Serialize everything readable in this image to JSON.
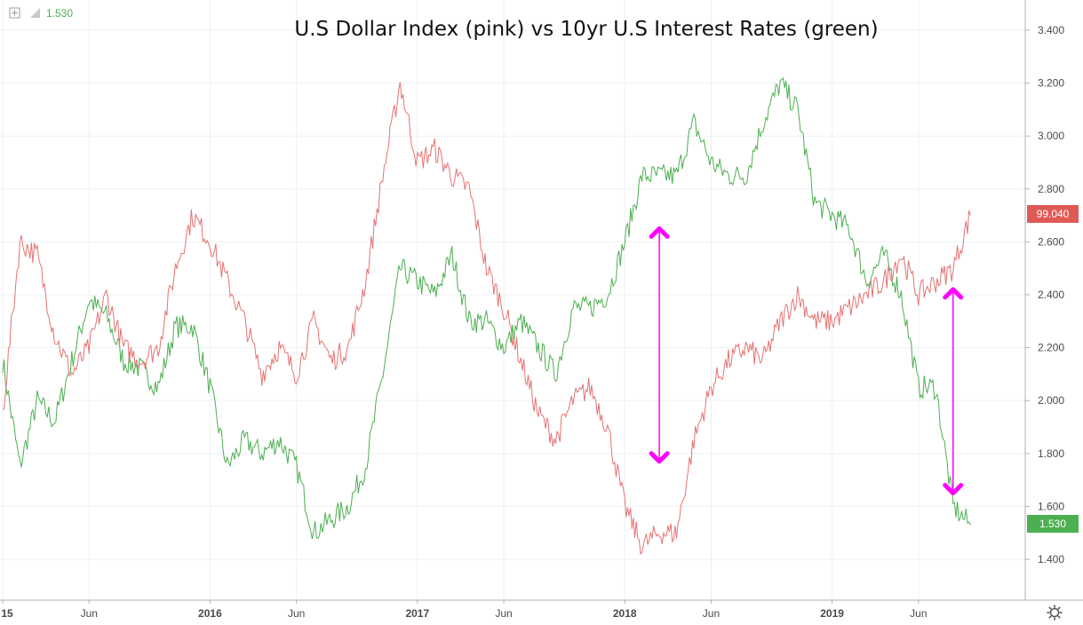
{
  "legend": {
    "value": "1.530"
  },
  "chart_data": {
    "type": "line",
    "title": "U.S Dollar Index (pink) vs 10yr U.S Interest Rates (green)",
    "xlabel": "",
    "ylabel": "",
    "ylim": [
      1.3,
      3.45
    ],
    "y_ticks": [
      "1.400",
      "1.600",
      "1.800",
      "2.000",
      "2.200",
      "2.400",
      "2.600",
      "2.800",
      "3.000",
      "3.200",
      "3.400"
    ],
    "x_ticks": [
      {
        "label": "15",
        "date": "2015-01",
        "major": true
      },
      {
        "label": "Jun",
        "date": "2015-06",
        "major": false
      },
      {
        "label": "2016",
        "date": "2016-01",
        "major": true
      },
      {
        "label": "Jun",
        "date": "2016-06",
        "major": false
      },
      {
        "label": "2017",
        "date": "2017-01",
        "major": true
      },
      {
        "label": "Jun",
        "date": "2017-06",
        "major": false
      },
      {
        "label": "2018",
        "date": "2018-01",
        "major": true
      },
      {
        "label": "Jun",
        "date": "2018-06",
        "major": false
      },
      {
        "label": "2019",
        "date": "2019-01",
        "major": true
      },
      {
        "label": "Jun",
        "date": "2019-06",
        "major": false
      }
    ],
    "grid": true,
    "series": [
      {
        "name": "10yr U.S Interest Rates",
        "color": "#4caf50",
        "last_value": "1.530",
        "points": [
          [
            "2015-01",
            2.15
          ],
          [
            "2015-02",
            1.75
          ],
          [
            "2015-03",
            2.0
          ],
          [
            "2015-04",
            1.92
          ],
          [
            "2015-05",
            2.15
          ],
          [
            "2015-06",
            2.38
          ],
          [
            "2015-07",
            2.32
          ],
          [
            "2015-08",
            2.15
          ],
          [
            "2015-09",
            2.12
          ],
          [
            "2015-10",
            2.05
          ],
          [
            "2015-11",
            2.28
          ],
          [
            "2015-12",
            2.28
          ],
          [
            "2016-01",
            2.05
          ],
          [
            "2016-02",
            1.75
          ],
          [
            "2016-03",
            1.85
          ],
          [
            "2016-04",
            1.8
          ],
          [
            "2016-05",
            1.85
          ],
          [
            "2016-06",
            1.75
          ],
          [
            "2016-07",
            1.5
          ],
          [
            "2016-08",
            1.55
          ],
          [
            "2016-09",
            1.6
          ],
          [
            "2016-10",
            1.75
          ],
          [
            "2016-11",
            2.1
          ],
          [
            "2016-12",
            2.5
          ],
          [
            "2017-01",
            2.45
          ],
          [
            "2017-02",
            2.4
          ],
          [
            "2017-03",
            2.55
          ],
          [
            "2017-04",
            2.3
          ],
          [
            "2017-05",
            2.3
          ],
          [
            "2017-06",
            2.2
          ],
          [
            "2017-07",
            2.3
          ],
          [
            "2017-08",
            2.2
          ],
          [
            "2017-09",
            2.1
          ],
          [
            "2017-10",
            2.35
          ],
          [
            "2017-11",
            2.35
          ],
          [
            "2017-12",
            2.4
          ],
          [
            "2018-01",
            2.6
          ],
          [
            "2018-02",
            2.85
          ],
          [
            "2018-03",
            2.85
          ],
          [
            "2018-04",
            2.85
          ],
          [
            "2018-05",
            3.05
          ],
          [
            "2018-06",
            2.9
          ],
          [
            "2018-07",
            2.85
          ],
          [
            "2018-08",
            2.85
          ],
          [
            "2018-09",
            3.05
          ],
          [
            "2018-10",
            3.2
          ],
          [
            "2018-11",
            3.1
          ],
          [
            "2018-12",
            2.75
          ],
          [
            "2019-01",
            2.7
          ],
          [
            "2019-02",
            2.65
          ],
          [
            "2019-03",
            2.45
          ],
          [
            "2019-04",
            2.55
          ],
          [
            "2019-05",
            2.4
          ],
          [
            "2019-06",
            2.05
          ],
          [
            "2019-07",
            2.05
          ],
          [
            "2019-08",
            1.6
          ],
          [
            "2019-09",
            1.53
          ]
        ]
      },
      {
        "name": "U.S Dollar Index",
        "color": "#e57373",
        "last_value": "99.040",
        "points": [
          [
            "2015-01",
            1.95
          ],
          [
            "2015-02",
            2.6
          ],
          [
            "2015-03",
            2.55
          ],
          [
            "2015-04",
            2.25
          ],
          [
            "2015-05",
            2.1
          ],
          [
            "2015-06",
            2.2
          ],
          [
            "2015-07",
            2.4
          ],
          [
            "2015-08",
            2.2
          ],
          [
            "2015-09",
            2.15
          ],
          [
            "2015-10",
            2.2
          ],
          [
            "2015-11",
            2.5
          ],
          [
            "2015-12",
            2.7
          ],
          [
            "2016-01",
            2.6
          ],
          [
            "2016-02",
            2.45
          ],
          [
            "2016-03",
            2.3
          ],
          [
            "2016-04",
            2.1
          ],
          [
            "2016-05",
            2.2
          ],
          [
            "2016-06",
            2.1
          ],
          [
            "2016-07",
            2.3
          ],
          [
            "2016-08",
            2.15
          ],
          [
            "2016-09",
            2.2
          ],
          [
            "2016-10",
            2.45
          ],
          [
            "2016-11",
            2.85
          ],
          [
            "2016-12",
            3.2
          ],
          [
            "2017-01",
            2.9
          ],
          [
            "2017-02",
            2.95
          ],
          [
            "2017-03",
            2.85
          ],
          [
            "2017-04",
            2.8
          ],
          [
            "2017-05",
            2.5
          ],
          [
            "2017-06",
            2.35
          ],
          [
            "2017-07",
            2.15
          ],
          [
            "2017-08",
            1.95
          ],
          [
            "2017-09",
            1.85
          ],
          [
            "2017-10",
            2.0
          ],
          [
            "2017-11",
            2.05
          ],
          [
            "2017-12",
            1.9
          ],
          [
            "2018-01",
            1.6
          ],
          [
            "2018-02",
            1.45
          ],
          [
            "2018-03",
            1.5
          ],
          [
            "2018-04",
            1.5
          ],
          [
            "2018-05",
            1.85
          ],
          [
            "2018-06",
            2.05
          ],
          [
            "2018-07",
            2.15
          ],
          [
            "2018-08",
            2.2
          ],
          [
            "2018-09",
            2.15
          ],
          [
            "2018-10",
            2.3
          ],
          [
            "2018-11",
            2.4
          ],
          [
            "2018-12",
            2.3
          ],
          [
            "2019-01",
            2.3
          ],
          [
            "2019-02",
            2.35
          ],
          [
            "2019-03",
            2.4
          ],
          [
            "2019-04",
            2.45
          ],
          [
            "2019-05",
            2.55
          ],
          [
            "2019-06",
            2.4
          ],
          [
            "2019-07",
            2.45
          ],
          [
            "2019-08",
            2.5
          ],
          [
            "2019-09",
            2.7
          ]
        ]
      }
    ],
    "annotations": [
      {
        "type": "double-arrow",
        "color": "#ff00ff",
        "date": "2018-03",
        "from": 2.65,
        "to": 1.77
      },
      {
        "type": "double-arrow",
        "color": "#ff00ff",
        "date": "2019-08",
        "from": 2.42,
        "to": 1.65
      }
    ]
  }
}
